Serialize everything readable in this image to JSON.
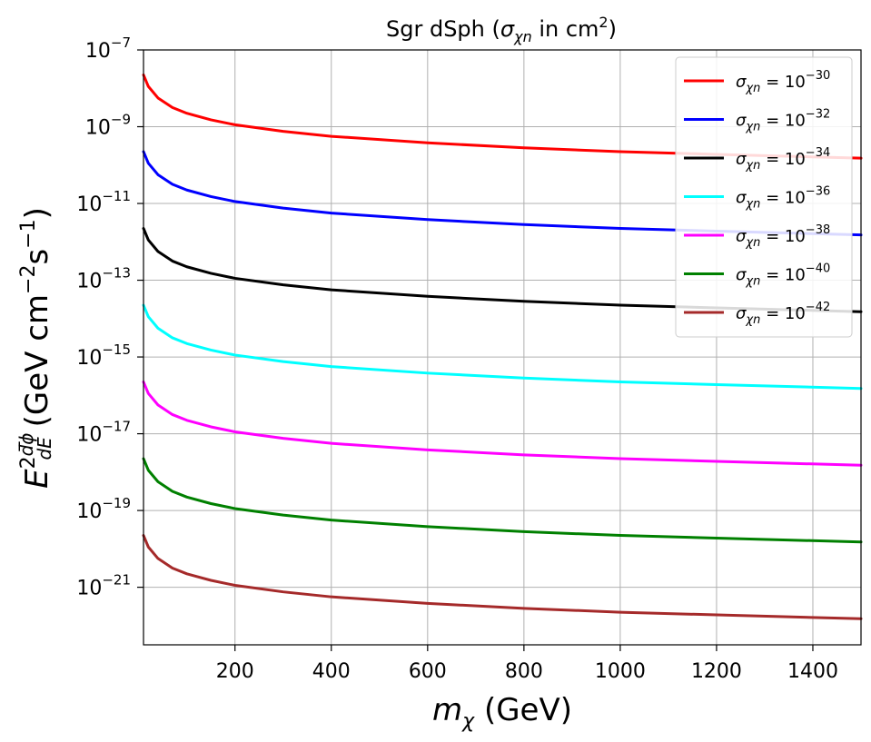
{
  "chart_data": {
    "type": "line",
    "title": {
      "prefix": "Sgr dSph (",
      "sym": "σ",
      "sub": "χn",
      "mid": " in cm",
      "sup": "2",
      "suffix": ")"
    },
    "xlabel": {
      "sym": "m",
      "sub": "χ",
      "rest": " (GeV)"
    },
    "ylabel": {
      "base": "E",
      "sup": "2",
      "frac_num": "dϕ",
      "frac_den": "dE",
      "units": " (GeV cm",
      "units_sup1": "−2",
      "units_s": "s",
      "units_sup2": "−1",
      "units_end": ")"
    },
    "x_scale": "linear",
    "y_scale": "log",
    "xlim": [
      10,
      1500
    ],
    "ylim_exp": [
      -22.5,
      -7
    ],
    "x_ticks": [
      {
        "value": 200,
        "label": "200"
      },
      {
        "value": 400,
        "label": "400"
      },
      {
        "value": 600,
        "label": "600"
      },
      {
        "value": 800,
        "label": "800"
      },
      {
        "value": 1000,
        "label": "1000"
      },
      {
        "value": 1200,
        "label": "1200"
      },
      {
        "value": 1400,
        "label": "1400"
      }
    ],
    "y_ticks": [
      {
        "exp": -7,
        "base": "10",
        "sup": "−7"
      },
      {
        "exp": -9,
        "base": "10",
        "sup": "−9"
      },
      {
        "exp": -11,
        "base": "10",
        "sup": "−11"
      },
      {
        "exp": -13,
        "base": "10",
        "sup": "−13"
      },
      {
        "exp": -15,
        "base": "10",
        "sup": "−15"
      },
      {
        "exp": -17,
        "base": "10",
        "sup": "−17"
      },
      {
        "exp": -19,
        "base": "10",
        "sup": "−19"
      },
      {
        "exp": -21,
        "base": "10",
        "sup": "−21"
      }
    ],
    "grid": true,
    "legend_position": "top-right",
    "series": [
      {
        "name": "σχn = 10−30",
        "legend": {
          "sym": "σ",
          "sub": "χn",
          "eq": " = 10",
          "sup": "−30"
        },
        "color": "#ff0000",
        "x": [
          10,
          20,
          40,
          70,
          100,
          150,
          200,
          300,
          400,
          600,
          800,
          1000,
          1200,
          1500
        ],
        "y_exp": [
          -7.65,
          -7.95,
          -8.25,
          -8.5,
          -8.65,
          -8.82,
          -8.95,
          -9.12,
          -9.25,
          -9.42,
          -9.55,
          -9.65,
          -9.72,
          -9.82
        ]
      },
      {
        "name": "σχn = 10−32",
        "legend": {
          "sym": "σ",
          "sub": "χn",
          "eq": " = 10",
          "sup": "−32"
        },
        "color": "#0000ff",
        "x": [
          10,
          20,
          40,
          70,
          100,
          150,
          200,
          300,
          400,
          600,
          800,
          1000,
          1200,
          1500
        ],
        "y_exp": [
          -9.65,
          -9.95,
          -10.25,
          -10.5,
          -10.65,
          -10.82,
          -10.95,
          -11.12,
          -11.25,
          -11.42,
          -11.55,
          -11.65,
          -11.72,
          -11.82
        ]
      },
      {
        "name": "σχn = 10−34",
        "legend": {
          "sym": "σ",
          "sub": "χn",
          "eq": " = 10",
          "sup": "−34"
        },
        "color": "#000000",
        "x": [
          10,
          20,
          40,
          70,
          100,
          150,
          200,
          300,
          400,
          600,
          800,
          1000,
          1200,
          1500
        ],
        "y_exp": [
          -11.65,
          -11.95,
          -12.25,
          -12.5,
          -12.65,
          -12.82,
          -12.95,
          -13.12,
          -13.25,
          -13.42,
          -13.55,
          -13.65,
          -13.72,
          -13.82
        ]
      },
      {
        "name": "σχn = 10−36",
        "legend": {
          "sym": "σ",
          "sub": "χn",
          "eq": " = 10",
          "sup": "−36"
        },
        "color": "#00ffff",
        "x": [
          10,
          20,
          40,
          70,
          100,
          150,
          200,
          300,
          400,
          600,
          800,
          1000,
          1200,
          1500
        ],
        "y_exp": [
          -13.65,
          -13.95,
          -14.25,
          -14.5,
          -14.65,
          -14.82,
          -14.95,
          -15.12,
          -15.25,
          -15.42,
          -15.55,
          -15.65,
          -15.72,
          -15.82
        ]
      },
      {
        "name": "σχn = 10−38",
        "legend": {
          "sym": "σ",
          "sub": "χn",
          "eq": " = 10",
          "sup": "−38"
        },
        "color": "#ff00ff",
        "x": [
          10,
          20,
          40,
          70,
          100,
          150,
          200,
          300,
          400,
          600,
          800,
          1000,
          1200,
          1500
        ],
        "y_exp": [
          -15.65,
          -15.95,
          -16.25,
          -16.5,
          -16.65,
          -16.82,
          -16.95,
          -17.12,
          -17.25,
          -17.42,
          -17.55,
          -17.65,
          -17.72,
          -17.82
        ]
      },
      {
        "name": "σχn = 10−40",
        "legend": {
          "sym": "σ",
          "sub": "χn",
          "eq": " = 10",
          "sup": "−40"
        },
        "color": "#008000",
        "x": [
          10,
          20,
          40,
          70,
          100,
          150,
          200,
          300,
          400,
          600,
          800,
          1000,
          1200,
          1500
        ],
        "y_exp": [
          -17.65,
          -17.95,
          -18.25,
          -18.5,
          -18.65,
          -18.82,
          -18.95,
          -19.12,
          -19.25,
          -19.42,
          -19.55,
          -19.65,
          -19.72,
          -19.82
        ]
      },
      {
        "name": "σχn = 10−42",
        "legend": {
          "sym": "σ",
          "sub": "χn",
          "eq": " = 10",
          "sup": "−42"
        },
        "color": "#a52a2a",
        "x": [
          10,
          20,
          40,
          70,
          100,
          150,
          200,
          300,
          400,
          600,
          800,
          1000,
          1200,
          1500
        ],
        "y_exp": [
          -19.65,
          -19.95,
          -20.25,
          -20.5,
          -20.65,
          -20.82,
          -20.95,
          -21.12,
          -21.25,
          -21.42,
          -21.55,
          -21.65,
          -21.72,
          -21.82
        ]
      }
    ]
  }
}
